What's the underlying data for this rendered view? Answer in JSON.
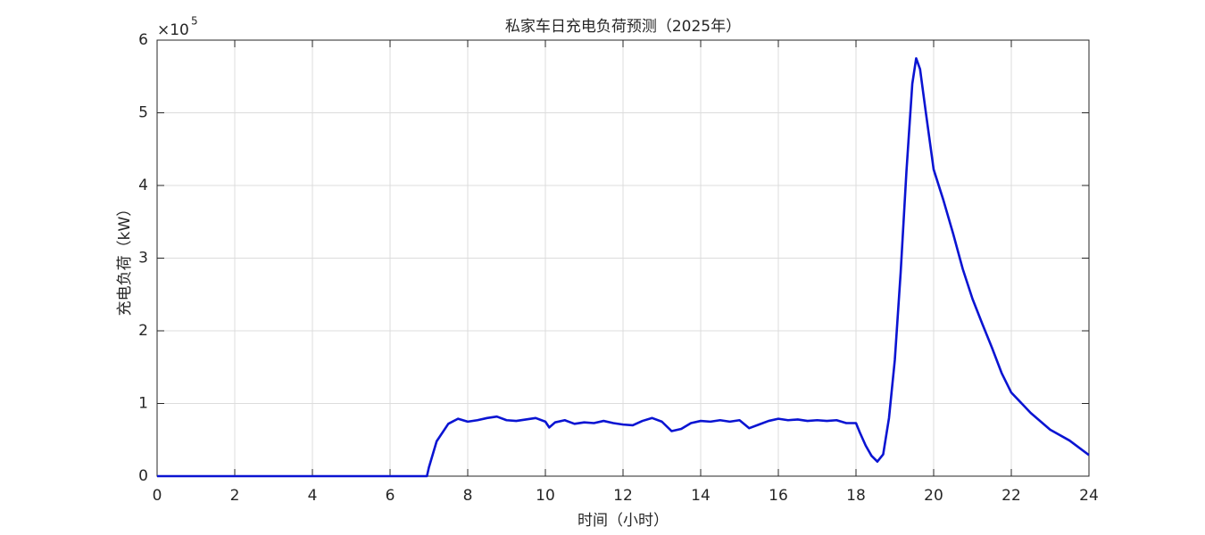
{
  "chart_data": {
    "type": "line",
    "title": "私家车日充电负荷预测（2025年）",
    "x_label": "时间（小时）",
    "y_label": "充电负荷（kW）",
    "y_scale_base": "×10",
    "y_scale_exponent": "5",
    "xlim": [
      0,
      24
    ],
    "xticks": [
      0,
      2,
      4,
      6,
      8,
      10,
      12,
      14,
      16,
      18,
      20,
      22,
      24
    ],
    "ylim": [
      0,
      6
    ],
    "yticks": [
      0,
      1,
      2,
      3,
      4,
      5,
      6
    ],
    "grid": true,
    "x": [
      0,
      6.95,
      7,
      7.2,
      7.5,
      7.75,
      8,
      8.25,
      8.5,
      8.75,
      9,
      9.25,
      9.5,
      9.75,
      10,
      10.1,
      10.25,
      10.5,
      10.75,
      11,
      11.25,
      11.5,
      11.75,
      12,
      12.25,
      12.5,
      12.75,
      13,
      13.25,
      13.5,
      13.75,
      14,
      14.25,
      14.5,
      14.75,
      15,
      15.25,
      15.5,
      15.75,
      16,
      16.25,
      16.5,
      16.75,
      17,
      17.25,
      17.5,
      17.75,
      18,
      18.1,
      18.25,
      18.4,
      18.55,
      18.7,
      18.85,
      19,
      19.15,
      19.3,
      19.45,
      19.55,
      19.65,
      19.8,
      20,
      20.25,
      20.5,
      20.75,
      21,
      21.25,
      21.5,
      21.75,
      22,
      22.5,
      23,
      23.5,
      24
    ],
    "series": [
      {
        "name": "充电负荷",
        "color": "#0a14d2",
        "values": [
          0,
          0,
          0.12,
          0.48,
          0.72,
          0.79,
          0.75,
          0.77,
          0.8,
          0.82,
          0.77,
          0.76,
          0.78,
          0.8,
          0.75,
          0.67,
          0.74,
          0.77,
          0.72,
          0.74,
          0.73,
          0.76,
          0.73,
          0.71,
          0.7,
          0.76,
          0.8,
          0.75,
          0.62,
          0.65,
          0.73,
          0.76,
          0.75,
          0.77,
          0.75,
          0.77,
          0.66,
          0.71,
          0.76,
          0.79,
          0.77,
          0.78,
          0.76,
          0.77,
          0.76,
          0.77,
          0.73,
          0.73,
          0.6,
          0.42,
          0.28,
          0.2,
          0.3,
          0.8,
          1.6,
          2.8,
          4.2,
          5.4,
          5.75,
          5.6,
          5.0,
          4.22,
          3.8,
          3.34,
          2.85,
          2.44,
          2.1,
          1.77,
          1.42,
          1.15,
          0.87,
          0.64,
          0.49,
          0.29
        ]
      }
    ]
  }
}
